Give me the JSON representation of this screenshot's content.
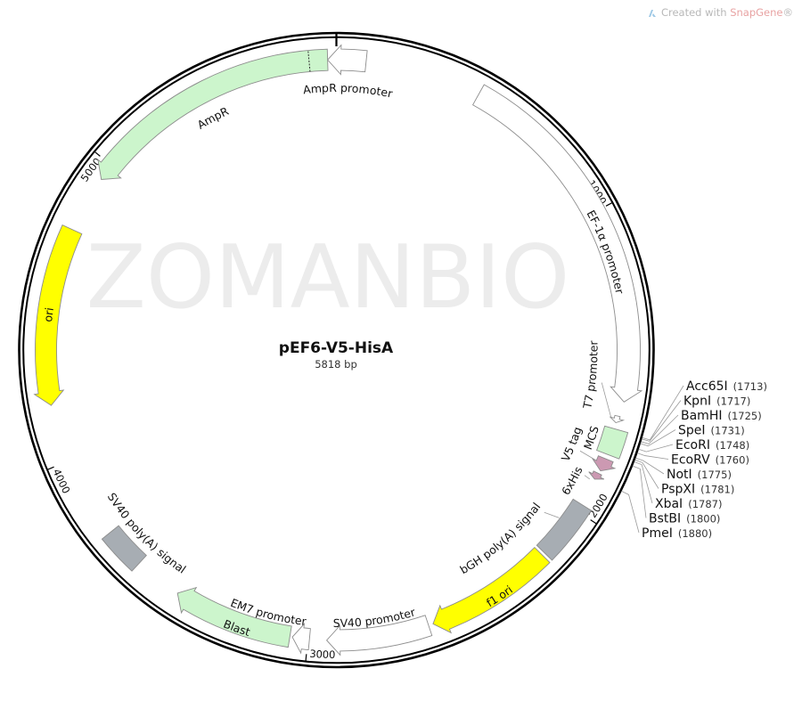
{
  "credit": {
    "prefix": "Created with ",
    "brand": "SnapGene",
    "reg": "®"
  },
  "background_watermark": "ZOMANBIO",
  "plasmid": {
    "name": "pEF6-V5-HisA",
    "length_label": "5818 bp",
    "length_bp": 5818
  },
  "colors": {
    "backbone": "#000000",
    "white_feature": "#ffffff",
    "green_feature": "#ccf5cc",
    "yellow_feature": "#ffff00",
    "gray_feature": "#a7adb3",
    "pink_feature": "#cc99b2",
    "feature_stroke": "#8c8c8c",
    "credit_brand": "#e8a3a3"
  },
  "ticks": [
    {
      "bp": 1000,
      "label": "1000"
    },
    {
      "bp": 2000,
      "label": "2000"
    },
    {
      "bp": 3000,
      "label": "3000"
    },
    {
      "bp": 4000,
      "label": "4000"
    },
    {
      "bp": 5000,
      "label": "5000"
    }
  ],
  "features": [
    {
      "name": "AmpR promoter",
      "start": 5790,
      "end": 95,
      "direction": -1,
      "color": "#ffffff"
    },
    {
      "name": "AmpR",
      "start": 4945,
      "end": 5790,
      "direction": -1,
      "color": "#ccf5cc"
    },
    {
      "name": "ori",
      "start": 4186,
      "end": 4760,
      "direction": -1,
      "color": "#ffff00"
    },
    {
      "name": "EF-1α promoter",
      "start": 470,
      "end": 1620,
      "direction": 1,
      "color": "#ffffff"
    },
    {
      "name": "T7 promoter",
      "start": 1668,
      "end": 1690,
      "direction": 1,
      "color": "#ffffff"
    },
    {
      "name": "MCS",
      "start": 1710,
      "end": 1795,
      "direction": 0,
      "color": "#ccf5cc"
    },
    {
      "name": "V5 tag",
      "start": 1810,
      "end": 1852,
      "direction": 1,
      "color": "#cc99b2"
    },
    {
      "name": "6xHis",
      "start": 1862,
      "end": 1884,
      "direction": 1,
      "color": "#cc99b2"
    },
    {
      "name": "bGH poly(A) signal",
      "start": 1975,
      "end": 2170,
      "direction": 0,
      "color": "#a7adb3"
    },
    {
      "name": "f1 ori",
      "start": 2180,
      "end": 2595,
      "direction": 1,
      "color": "#ffff00"
    },
    {
      "name": "SV40 promoter",
      "start": 2610,
      "end": 2940,
      "direction": 1,
      "color": "#ffffff"
    },
    {
      "name": "EM7 promoter",
      "start": 2995,
      "end": 3050,
      "direction": 1,
      "color": "#ffffff"
    },
    {
      "name": "Blast",
      "start": 3058,
      "end": 3445,
      "direction": 1,
      "color": "#ccf5cc"
    },
    {
      "name": "SV40 poly(A) signal",
      "start": 3600,
      "end": 3735,
      "direction": 0,
      "color": "#a7adb3"
    }
  ],
  "sites": [
    {
      "name": "Acc65I",
      "position": 1713
    },
    {
      "name": "KpnI",
      "position": 1717
    },
    {
      "name": "BamHI",
      "position": 1725
    },
    {
      "name": "SpeI",
      "position": 1731
    },
    {
      "name": "EcoRI",
      "position": 1748
    },
    {
      "name": "EcoRV",
      "position": 1760
    },
    {
      "name": "NotI",
      "position": 1775
    },
    {
      "name": "PspXI",
      "position": 1781
    },
    {
      "name": "XbaI",
      "position": 1787
    },
    {
      "name": "BstBI",
      "position": 1800
    },
    {
      "name": "PmeI",
      "position": 1880
    }
  ]
}
